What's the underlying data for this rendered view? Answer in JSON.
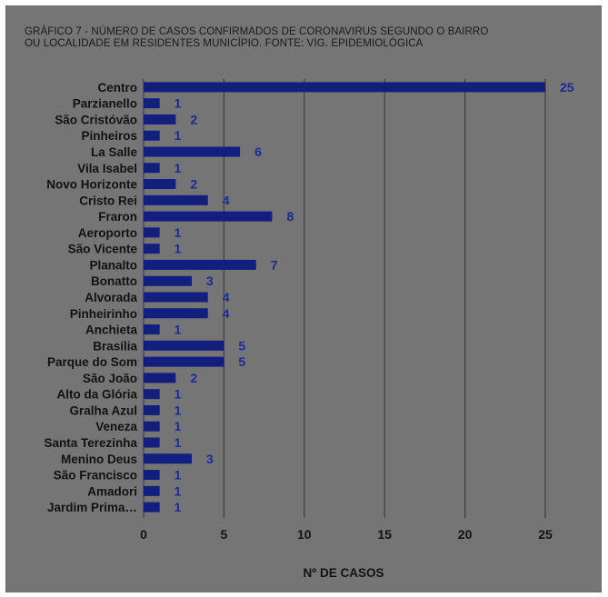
{
  "title": "GRÁFICO 7 - NÚMERO DE CASOS CONFIRMADOS DE CORONAVIRUS SEGUNDO O BAIRRO\nOU LOCALIDADE  EM RESIDENTES MUNICÍPIO. FONTE: VIG. EPIDEMIOLÓGICA",
  "colors": {
    "background": "#757575",
    "bar": "#121f7e",
    "value_label": "#1a2a9a",
    "gridline": "#3f3f3f"
  },
  "chart_data": {
    "type": "bar",
    "orientation": "horizontal",
    "title": "GRÁFICO 7 - NÚMERO DE CASOS CONFIRMADOS DE CORONAVIRUS SEGUNDO O BAIRRO OU LOCALIDADE  EM RESIDENTES MUNICÍPIO. FONTE: VIG. EPIDEMIOLÓGICA",
    "xlabel": "Nº DE CASOS",
    "ylabel": "",
    "xlim": [
      0,
      25
    ],
    "xticks": [
      0,
      5,
      10,
      15,
      20,
      25
    ],
    "grid": true,
    "legend": "none",
    "categories": [
      "Centro",
      "Parzianello",
      "São Cristóvão",
      "Pinheiros",
      "La Salle",
      "Vila Isabel",
      "Novo Horizonte",
      "Cristo Rei",
      "Fraron",
      "Aeroporto",
      "São Vicente",
      "Planalto",
      "Bonatto",
      "Alvorada",
      "Pinheirinho",
      "Anchieta",
      "Brasília",
      "Parque do Som",
      "São João",
      "Alto da Glória",
      "Gralha Azul",
      "Veneza",
      "Santa Terezinha",
      "Menino Deus",
      "São Francisco",
      "Amadori",
      "Jardim Prima…"
    ],
    "values": [
      25,
      1,
      2,
      1,
      6,
      1,
      2,
      4,
      8,
      1,
      1,
      7,
      3,
      4,
      4,
      1,
      5,
      5,
      2,
      1,
      1,
      1,
      1,
      3,
      1,
      1,
      1
    ]
  }
}
